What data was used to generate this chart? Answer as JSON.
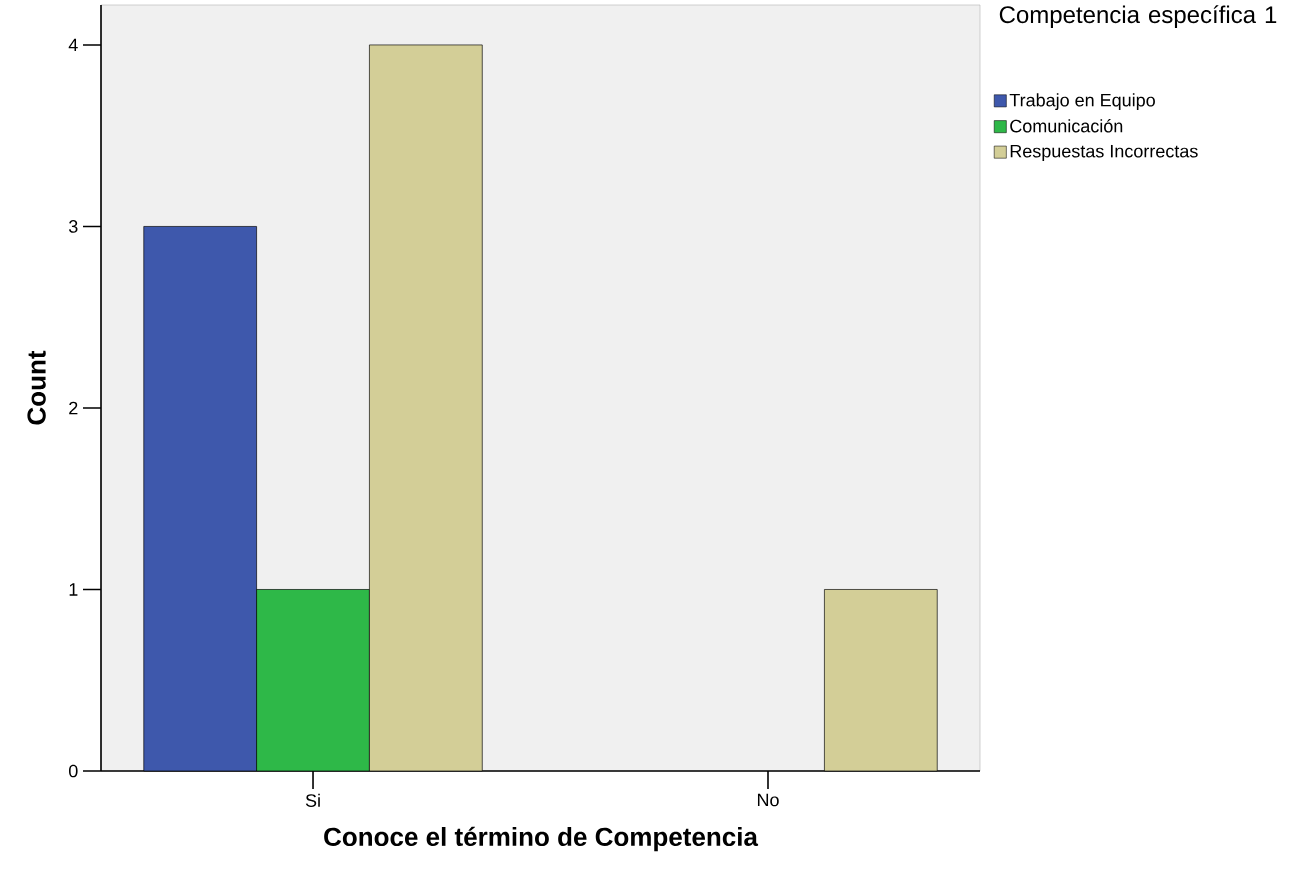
{
  "chart_data": {
    "type": "bar",
    "xlabel": "Conoce el término de Competencia",
    "ylabel": "Count",
    "legend_title": "Competencia específica 1",
    "categories": [
      "Si",
      "No"
    ],
    "series": [
      {
        "name": "Trabajo en Equipo",
        "color": "#3e58ac",
        "values": [
          3,
          null
        ]
      },
      {
        "name": "Comunicación",
        "color": "#2eb848",
        "values": [
          1,
          null
        ]
      },
      {
        "name": "Respuestas Incorrectas",
        "color": "#d3ce97",
        "values": [
          4,
          1
        ]
      }
    ],
    "ylim": [
      0,
      4.22
    ],
    "yticks": [
      0,
      1,
      2,
      3,
      4
    ],
    "legend": "top right"
  }
}
